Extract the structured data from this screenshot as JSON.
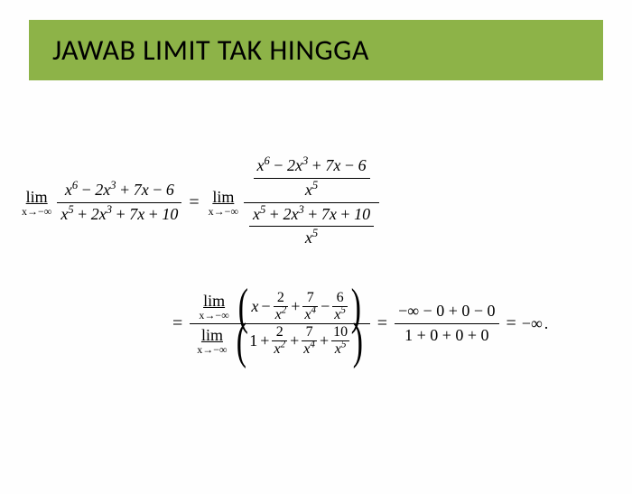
{
  "title": "JAWAB LIMIT TAK HINGGA",
  "colors": {
    "title_bg": "#8db348",
    "page_bg": "#fefefe",
    "text": "#000000"
  },
  "lim_label": "lim",
  "lim_sub": "x→−∞",
  "eq": "=",
  "line1": {
    "lhs": {
      "num": "x⁶ − 2x³ + 7x − 6",
      "den": "x⁵ + 2x³ + 7x + 10"
    },
    "rhs": {
      "outer_num": {
        "num": "x⁶ − 2x³ + 7x − 6",
        "den": "x⁵"
      },
      "outer_den": {
        "num": "x⁵ + 2x³ + 7x + 10",
        "den": "x⁵"
      }
    }
  },
  "line2": {
    "big_num": {
      "lead": "x",
      "t1": {
        "sign": "−",
        "n": "2",
        "d": "x²"
      },
      "t2": {
        "sign": "+",
        "n": "7",
        "d": "x⁴"
      },
      "t3": {
        "sign": "−",
        "n": "6",
        "d": "x⁵"
      }
    },
    "big_den": {
      "lead": "1",
      "t1": {
        "sign": "+",
        "n": "2",
        "d": "x²"
      },
      "t2": {
        "sign": "+",
        "n": "7",
        "d": "x⁴"
      },
      "t3": {
        "sign": "+",
        "n": "10",
        "d": "x⁵"
      }
    },
    "eval": {
      "num": "−∞ − 0 + 0 − 0",
      "den": "1 + 0 + 0 + 0"
    },
    "result": "−∞",
    "period": "."
  }
}
